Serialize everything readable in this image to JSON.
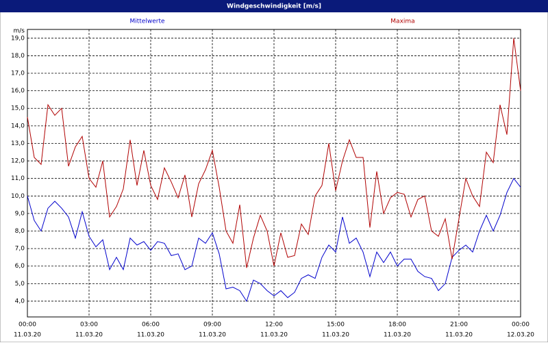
{
  "chart_data": {
    "type": "line",
    "title": "Windgeschwindigkeit [m/s]",
    "y_unit": "m/s",
    "x": [
      0,
      20,
      40,
      60,
      80,
      100,
      120,
      140,
      160,
      180,
      200,
      220,
      240,
      260,
      280,
      300,
      320,
      340,
      360,
      380,
      400,
      420,
      440,
      460,
      480,
      500,
      520,
      540,
      560,
      580,
      600,
      620,
      640,
      660,
      680,
      700,
      720,
      740,
      760,
      780,
      800,
      820,
      840,
      860,
      880,
      900,
      920,
      940,
      960,
      980,
      1000,
      1020,
      1040,
      1060,
      1080,
      1100,
      1120,
      1140,
      1160,
      1180,
      1200,
      1220,
      1240,
      1260,
      1280,
      1300,
      1320,
      1340,
      1360,
      1380,
      1400,
      1420,
      1440
    ],
    "xlim": [
      0,
      1440
    ],
    "xticks": [
      {
        "value": 0,
        "label": "00:00",
        "date": "11.03.20"
      },
      {
        "value": 180,
        "label": "03:00",
        "date": "11.03.20"
      },
      {
        "value": 360,
        "label": "06:00",
        "date": "11.03.20"
      },
      {
        "value": 540,
        "label": "09:00",
        "date": "11.03.20"
      },
      {
        "value": 720,
        "label": "12:00",
        "date": "11.03.20"
      },
      {
        "value": 900,
        "label": "15:00",
        "date": "11.03.20"
      },
      {
        "value": 1080,
        "label": "18:00",
        "date": "11.03.20"
      },
      {
        "value": 1260,
        "label": "21:00",
        "date": "11.03.20"
      },
      {
        "value": 1440,
        "label": "00:00",
        "date": "12.03.20"
      }
    ],
    "ylim": [
      3.1,
      19.5
    ],
    "yticks": [
      {
        "value": 4,
        "label": "4,0"
      },
      {
        "value": 5,
        "label": "5,0"
      },
      {
        "value": 6,
        "label": "6,0"
      },
      {
        "value": 7,
        "label": "7,0"
      },
      {
        "value": 8,
        "label": "8,0"
      },
      {
        "value": 9,
        "label": "9,0"
      },
      {
        "value": 10,
        "label": "10,0"
      },
      {
        "value": 11,
        "label": "11,0"
      },
      {
        "value": 12,
        "label": "12,0"
      },
      {
        "value": 13,
        "label": "13,0"
      },
      {
        "value": 14,
        "label": "14,0"
      },
      {
        "value": 15,
        "label": "15,0"
      },
      {
        "value": 16,
        "label": "16,0"
      },
      {
        "value": 17,
        "label": "17,0"
      },
      {
        "value": 18,
        "label": "18,0"
      },
      {
        "value": 19,
        "label": "19,0"
      }
    ],
    "grid": true,
    "series": [
      {
        "name": "Mittelwerte",
        "color": "#0000cc",
        "values": [
          10.0,
          8.6,
          8.0,
          9.3,
          9.7,
          9.3,
          8.8,
          7.6,
          9.1,
          7.7,
          7.1,
          7.5,
          5.8,
          6.5,
          5.8,
          7.6,
          7.2,
          7.4,
          6.9,
          7.4,
          7.3,
          6.6,
          6.7,
          5.8,
          6.0,
          7.6,
          7.3,
          7.9,
          6.7,
          4.7,
          4.8,
          4.6,
          4.0,
          5.2,
          5.0,
          4.6,
          4.3,
          4.6,
          4.2,
          4.5,
          5.3,
          5.5,
          5.3,
          6.5,
          7.2,
          6.8,
          8.8,
          7.3,
          7.6,
          6.8,
          5.4,
          6.8,
          6.2,
          6.8,
          6.0,
          6.4,
          6.4,
          5.7,
          5.4,
          5.3,
          4.6,
          5.0,
          6.5,
          6.9,
          7.2,
          6.8,
          8.0,
          8.9,
          8.0,
          8.9,
          10.2,
          11.0,
          10.5
        ]
      },
      {
        "name": "Maxima",
        "color": "#b00000",
        "values": [
          14.5,
          12.2,
          11.8,
          15.2,
          14.6,
          15.0,
          11.7,
          12.8,
          13.4,
          11.0,
          10.5,
          12.0,
          8.8,
          9.4,
          10.4,
          13.2,
          10.6,
          12.6,
          10.6,
          9.8,
          11.6,
          10.8,
          9.9,
          11.2,
          8.8,
          10.7,
          11.5,
          12.6,
          10.5,
          8.0,
          7.3,
          9.5,
          5.9,
          7.6,
          8.9,
          8.0,
          6.0,
          7.9,
          6.5,
          6.6,
          8.4,
          7.8,
          10.0,
          10.6,
          13.0,
          10.3,
          12.0,
          13.2,
          12.2,
          12.2,
          8.2,
          11.4,
          9.0,
          9.9,
          10.2,
          10.1,
          8.8,
          9.8,
          10.0,
          8.0,
          7.7,
          8.7,
          6.4,
          8.7,
          11.0,
          10.0,
          9.4,
          12.5,
          11.9,
          15.2,
          13.5,
          19.0,
          16.0
        ]
      }
    ]
  }
}
